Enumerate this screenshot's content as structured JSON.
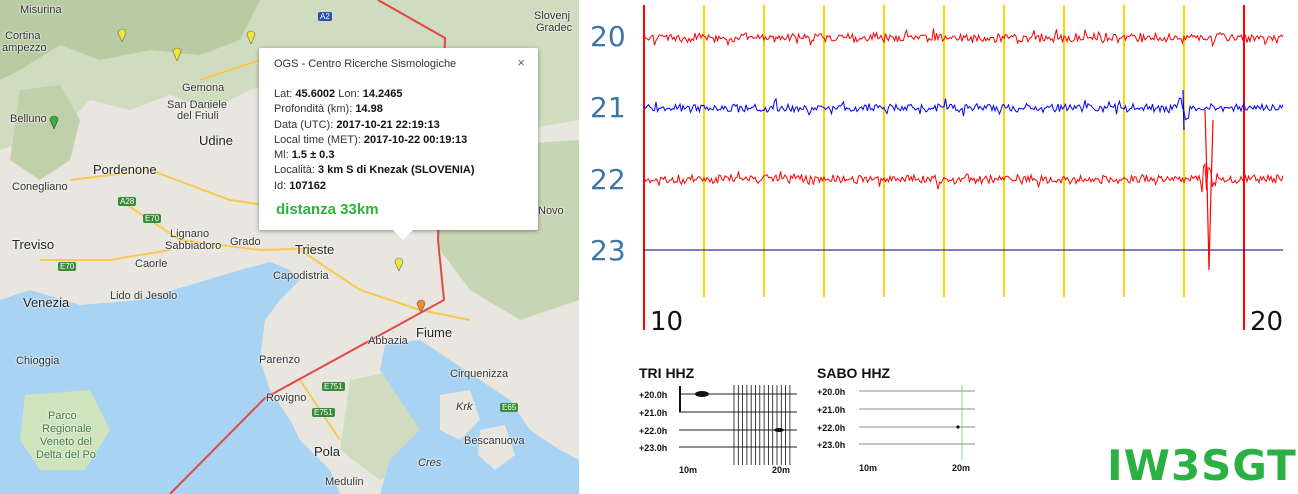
{
  "map": {
    "labels": {
      "misurina": "Misurina",
      "cortina": "Cortina",
      "ampezzo": "ampezzo",
      "belluno": "Belluno",
      "gemona": "Gemona",
      "san_daniele": "San Daniele",
      "del_friuli": "del Friuli",
      "udine": "Udine",
      "pordenone": "Pordenone",
      "conegliano": "Conegliano",
      "treviso": "Treviso",
      "sabbiadoro": "Sabbiadoro",
      "grado": "Grado",
      "caorle": "Caorle",
      "lignano": "Lignano",
      "lido_di_jesolo": "Lido di Jesolo",
      "venezia": "Venezia",
      "chioggia": "Chioggia",
      "trieste": "Trieste",
      "capodistria": "Capodistria",
      "parenzo": "Parenzo",
      "rovigno": "Rovigno",
      "pola": "Pola",
      "medulin": "Medulin",
      "abbazia": "Abbazia",
      "fiume": "Fiume",
      "cirquenizza": "Cirquenizza",
      "krk": "Krk",
      "bescanuova": "Bescanuova",
      "cres": "Cres",
      "slovenj": "Slovenj",
      "gradec": "Gradec",
      "novo": "Novo",
      "parco_1": "Parco",
      "parco_2": "Regionale",
      "parco_3": "Veneto del",
      "parco_4": "Delta del Po"
    },
    "shields": {
      "a2": "A2",
      "a28": "A28",
      "e70_1": "E70",
      "e70_2": "E70",
      "e751_1": "E751",
      "e751_2": "E751",
      "e65": "E65"
    }
  },
  "popup": {
    "title": "OGS - Centro Ricerche Sismologiche",
    "close": "×",
    "lat_label": "Lat: ",
    "lat": "45.6002",
    "lon_label": " Lon: ",
    "lon": "14.2465",
    "depth_label": "Profondità (km): ",
    "depth": "14.98",
    "date_label": "Data (UTC): ",
    "date": "2017-10-21 22:19:13",
    "local_label": "Local time (MET): ",
    "local": "2017-10-22 00:19:13",
    "ml_label": "Ml: ",
    "ml": "1.5 ± 0.3",
    "loc_label": "Località: ",
    "loc": "3 km S di Knezak (SLOVENIA)",
    "id_label": "Id: ",
    "id": "107162",
    "distance": "distanza 33km"
  },
  "helicorder": {
    "hours": [
      "20",
      "21",
      "22",
      "23"
    ],
    "x_start": "10",
    "x_end": "20",
    "trace_colors": [
      "#ff0000",
      "#0000ff",
      "#ff0000",
      "#000080"
    ],
    "marker_color": "#ffd200"
  },
  "panels": [
    {
      "title": "TRI HHZ",
      "ticks": [
        "+20.0h",
        "+21.0h",
        "+22.0h",
        "+23.0h"
      ],
      "xt1": "10m",
      "xt2": "20m"
    },
    {
      "title": "SABO HHZ",
      "ticks": [
        "+20.0h",
        "+21.0h",
        "+22.0h",
        "+23.0h"
      ],
      "xt1": "10m",
      "xt2": "20m"
    }
  ],
  "callsign": "IW3SGT"
}
